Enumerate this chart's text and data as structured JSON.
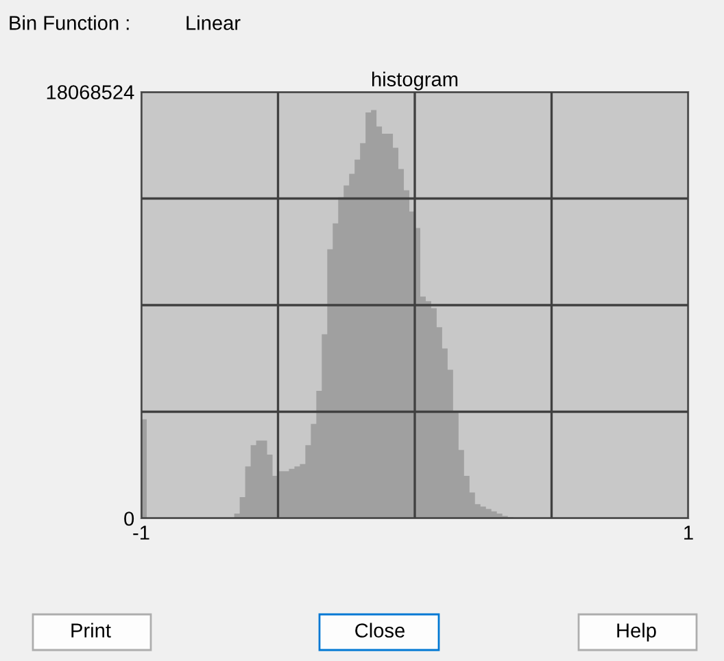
{
  "chart_data": {
    "type": "histogram",
    "title": "histogram",
    "bins": [
      -1,
      -0.98,
      -0.96,
      -0.94,
      -0.92,
      -0.9,
      -0.88,
      -0.86,
      -0.84,
      -0.82,
      -0.8,
      -0.78,
      -0.76,
      -0.74,
      -0.72,
      -0.7,
      -0.68,
      -0.66,
      -0.64,
      -0.62,
      -0.6,
      -0.58,
      -0.56,
      -0.54,
      -0.52,
      -0.5,
      -0.48,
      -0.46,
      -0.44,
      -0.42,
      -0.4,
      -0.38,
      -0.36,
      -0.34,
      -0.32,
      -0.3,
      -0.28,
      -0.26,
      -0.24,
      -0.22,
      -0.2,
      -0.18,
      -0.16,
      -0.14,
      -0.12,
      -0.1,
      -0.08,
      -0.06,
      -0.04,
      -0.02,
      0,
      0.02,
      0.04,
      0.06,
      0.08,
      0.1,
      0.12,
      0.14,
      0.16,
      0.18,
      0.2,
      0.22,
      0.24,
      0.26,
      0.28,
      0.3,
      0.32,
      0.34,
      0.36,
      0.38,
      0.4,
      0.42,
      0.44,
      0.46,
      0.48,
      0.5,
      0.52,
      0.54,
      0.56,
      0.58,
      0.6,
      0.62,
      0.64,
      0.66,
      0.68,
      0.7,
      0.72,
      0.74,
      0.76,
      0.78,
      0.8,
      0.82,
      0.84,
      0.86,
      0.88,
      0.9,
      0.92,
      0.94,
      0.96,
      0.98,
      1
    ],
    "values": [
      4200000,
      0,
      0,
      0,
      0,
      0,
      0,
      0,
      0,
      0,
      0,
      0,
      0,
      0,
      0,
      0,
      0,
      200000,
      900000,
      2200000,
      3100000,
      3300000,
      3300000,
      2700000,
      1800000,
      2000000,
      2000000,
      2100000,
      2200000,
      2300000,
      3100000,
      4000000,
      5400000,
      7800000,
      11400000,
      12500000,
      13600000,
      14100000,
      14600000,
      15200000,
      15900000,
      17200000,
      17300000,
      16600000,
      16300000,
      16300000,
      15700000,
      14800000,
      13900000,
      13000000,
      12300000,
      9400000,
      9200000,
      8900000,
      8100000,
      7200000,
      6300000,
      4500000,
      2900000,
      1800000,
      1100000,
      600000,
      500000,
      400000,
      300000,
      200000,
      100000,
      50000,
      0,
      0,
      0,
      0,
      0,
      0,
      0,
      0,
      0,
      0,
      0,
      0,
      0,
      0,
      0,
      0,
      0,
      0,
      0,
      0,
      0,
      0,
      0,
      0,
      0,
      0,
      0,
      0,
      0,
      0,
      0,
      0
    ],
    "color": "#a0a0a0",
    "xlim": [
      -1,
      1
    ],
    "xticks": [
      -1,
      {
        "value": -0.5,
        "label": null
      },
      {
        "value": 0,
        "label": null
      },
      {
        "value": 0.5,
        "label": null
      },
      1
    ],
    "ylim": [
      0,
      18068524
    ],
    "yticks": [
      0,
      {
        "value": 4517131,
        "label": null
      },
      {
        "value": 9034262,
        "label": null
      },
      {
        "value": 13551393,
        "label": null
      },
      18068524
    ],
    "grid": true,
    "annotations": [
      "Bin Function :",
      "Linear",
      "Print",
      "Close",
      "Help"
    ]
  }
}
